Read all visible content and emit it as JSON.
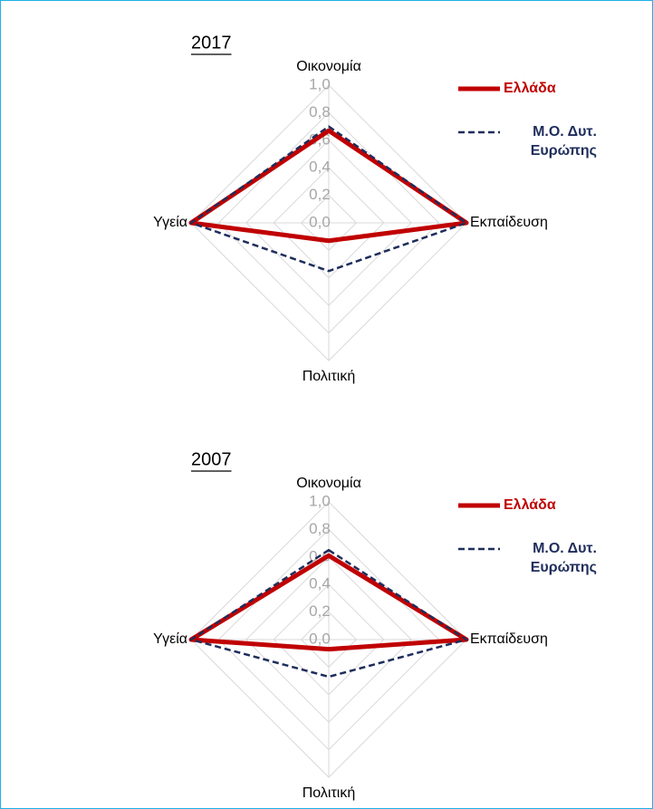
{
  "chart_data": [
    {
      "type": "radar",
      "title": "2017",
      "categories": [
        "Οικονομία",
        "Εκπαίδευση",
        "Πολιτική",
        "Υγεία"
      ],
      "series": [
        {
          "name": "Ελλάδα",
          "color": "#c00000",
          "values": [
            0.67,
            1.0,
            0.13,
            1.0
          ]
        },
        {
          "name": "Μ.Ο. Δυτ. Ευρώπης",
          "color": "#1f2d5c",
          "values": [
            0.7,
            1.0,
            0.35,
            1.0
          ]
        }
      ],
      "rlim": [
        0,
        1
      ],
      "rticks": [
        {
          "value": 0,
          "label": "0,0"
        },
        {
          "value": 0.2,
          "label": "0,2"
        },
        {
          "value": 0.4,
          "label": "0,4"
        },
        {
          "value": 0.6,
          "label": "0,6"
        },
        {
          "value": 0.8,
          "label": "0,8"
        },
        {
          "value": 1,
          "label": "1,0"
        }
      ],
      "grid": true
    },
    {
      "type": "radar",
      "title": "2007",
      "categories": [
        "Οικονομία",
        "Εκπαίδευση",
        "Πολιτική",
        "Υγεία"
      ],
      "series": [
        {
          "name": "Ελλάδα",
          "color": "#c00000",
          "values": [
            0.61,
            1.0,
            0.07,
            1.0
          ]
        },
        {
          "name": "Μ.Ο. Δυτ. Ευρώπης",
          "color": "#1f2d5c",
          "values": [
            0.65,
            1.0,
            0.27,
            1.0
          ]
        }
      ],
      "rlim": [
        0,
        1
      ],
      "rticks": [
        {
          "value": 0,
          "label": "0,0"
        },
        {
          "value": 0.2,
          "label": "0,2"
        },
        {
          "value": 0.4,
          "label": "0,4"
        },
        {
          "value": 0.6,
          "label": "0,6"
        },
        {
          "value": 0.8,
          "label": "0,8"
        },
        {
          "value": 1,
          "label": "1,0"
        }
      ],
      "grid": true
    }
  ]
}
